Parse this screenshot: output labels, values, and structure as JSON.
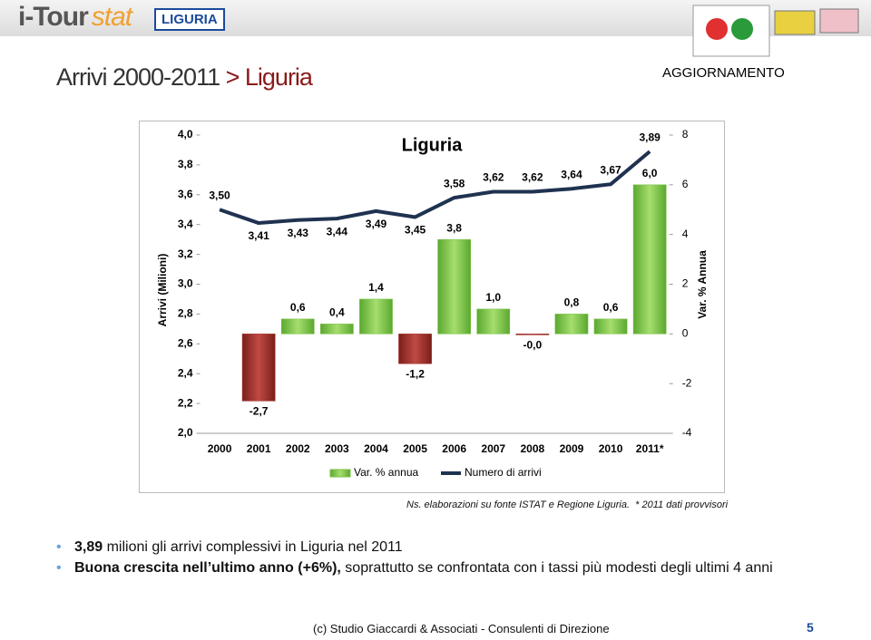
{
  "header": {
    "logo_main": "i-Tour",
    "logo_sub": "stat",
    "region": "LIGURIA"
  },
  "slide": {
    "title": "Arrivi 2000-2011",
    "title_highlight": "> Liguria",
    "tag": "AGGIORNAMENTO"
  },
  "chart_data": {
    "type": "combo",
    "title": "Liguria",
    "y_label": "Arrivi (Milioni)",
    "y2_label": "Var. % Annua",
    "categories": [
      "2000",
      "2001",
      "2002",
      "2003",
      "2004",
      "2005",
      "2006",
      "2007",
      "2008",
      "2009",
      "2010",
      "2011*"
    ],
    "series": [
      {
        "name": "Var. % annua",
        "type": "bar",
        "axis": "y2",
        "color": "#7ac143",
        "negative_color": "#a8322e",
        "values": [
          null,
          -2.7,
          0.6,
          0.4,
          1.4,
          -1.2,
          3.8,
          1.0,
          -0.04,
          0.8,
          0.6,
          6.0
        ],
        "value_labels": [
          null,
          "-2,7",
          "0,6",
          "0,4",
          "1,4",
          "-1,2",
          "3,8",
          "1,0",
          "-0,0",
          "0,8",
          "0,6",
          "6,0"
        ]
      },
      {
        "name": "Numero di arrivi",
        "type": "line",
        "axis": "y",
        "color": "#1f3250",
        "values": [
          3.5,
          3.41,
          3.43,
          3.44,
          3.49,
          3.45,
          3.58,
          3.62,
          3.62,
          3.64,
          3.67,
          3.89
        ],
        "value_labels": [
          "3,50",
          "3,41",
          "3,43",
          "3,44",
          "3,49",
          "3,45",
          "3,58",
          "3,62",
          "3,62",
          "3,64",
          "3,67",
          "3,89"
        ]
      }
    ],
    "ylim": [
      2,
      4
    ],
    "yticks": [
      {
        "value": 2,
        "label": "2,0"
      },
      {
        "value": 2.2,
        "label": "2,2"
      },
      {
        "value": 2.4,
        "label": "2,4"
      },
      {
        "value": 2.6,
        "label": "2,6"
      },
      {
        "value": 2.8,
        "label": "2,8"
      },
      {
        "value": 3,
        "label": "3,0"
      },
      {
        "value": 3.2,
        "label": "3,2"
      },
      {
        "value": 3.4,
        "label": "3,4"
      },
      {
        "value": 3.6,
        "label": "3,6"
      },
      {
        "value": 3.8,
        "label": "3,8"
      },
      {
        "value": 4,
        "label": "4,0"
      }
    ],
    "y2lim": [
      -4,
      8
    ],
    "y2ticks": [
      -4,
      -2,
      0,
      2,
      4,
      6,
      8
    ],
    "grid": false,
    "legend": "bottom"
  },
  "source": {
    "text": "Ns. elaborazioni su fonte ISTAT e Regione Liguria.",
    "note": "* 2011 dati provvisori"
  },
  "bullets": [
    {
      "bold": "3,89",
      "text": "milioni gli arrivi complessivi in Liguria nel 2011"
    },
    {
      "bold": "Buona crescita nell’ultimo anno (+6%),",
      "text": "soprattutto se confrontata con i tassi più modesti degli ultimi 4 anni"
    }
  ],
  "footer": {
    "text": "(c) Studio Giaccardi & Associati - Consulenti di Direzione",
    "page": "5"
  }
}
